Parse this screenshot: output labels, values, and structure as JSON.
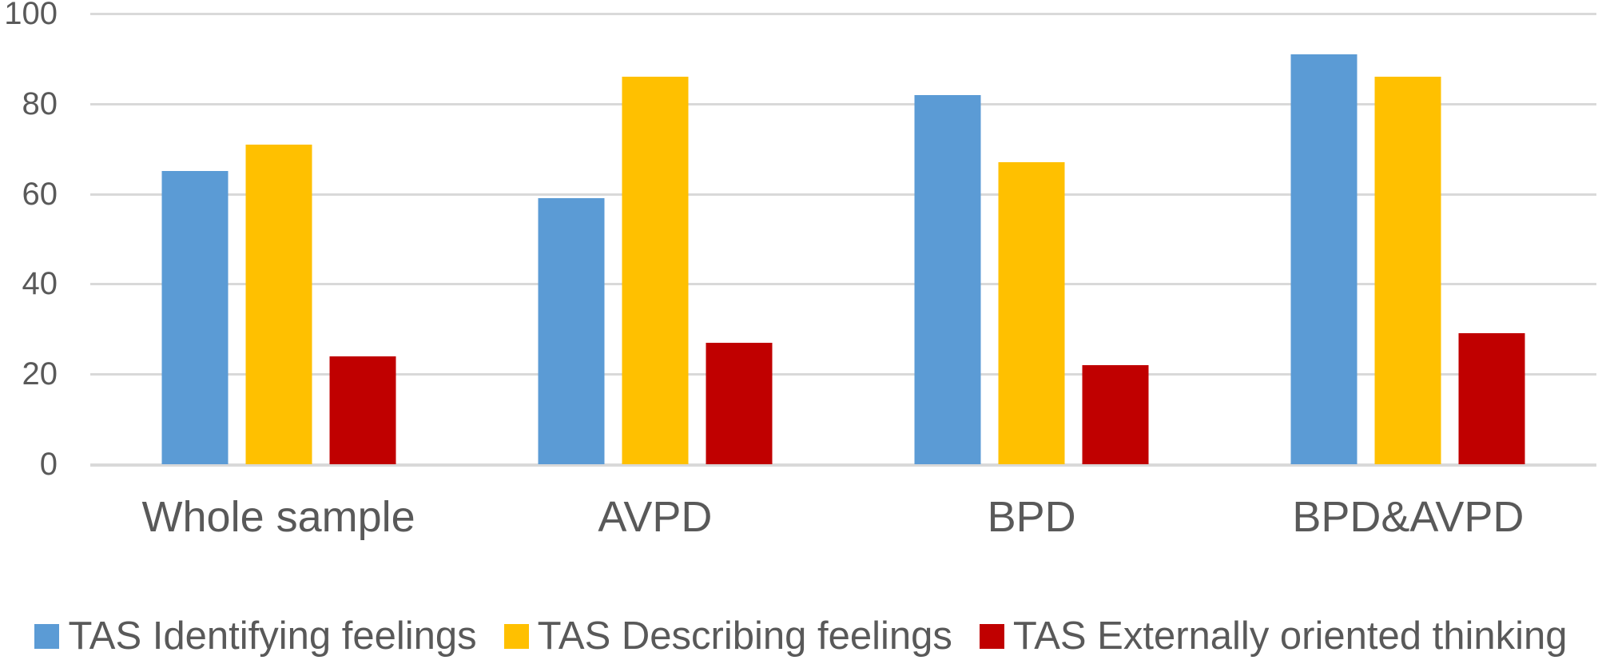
{
  "chart_data": {
    "type": "bar",
    "title": "",
    "xlabel": "",
    "ylabel": "",
    "categories": [
      "Whole sample",
      "AVPD",
      "BPD",
      "BPD&AVPD"
    ],
    "series": [
      {
        "name": "TAS Identifying feelings",
        "color": "#5B9BD5",
        "values": [
          65,
          59,
          82,
          91
        ]
      },
      {
        "name": "TAS Describing feelings",
        "color": "#FFC000",
        "values": [
          71,
          86,
          67,
          86
        ]
      },
      {
        "name": "TAS Externally oriented thinking",
        "color": "#C00000",
        "values": [
          24,
          27,
          22,
          29
        ]
      }
    ],
    "ylim": [
      0,
      100
    ],
    "yticks": [
      0,
      20,
      40,
      60,
      80,
      100
    ],
    "grid": true,
    "gridline_color": "#D9D9D9",
    "axis_text_color": "#595959",
    "legend_position": "bottom"
  }
}
